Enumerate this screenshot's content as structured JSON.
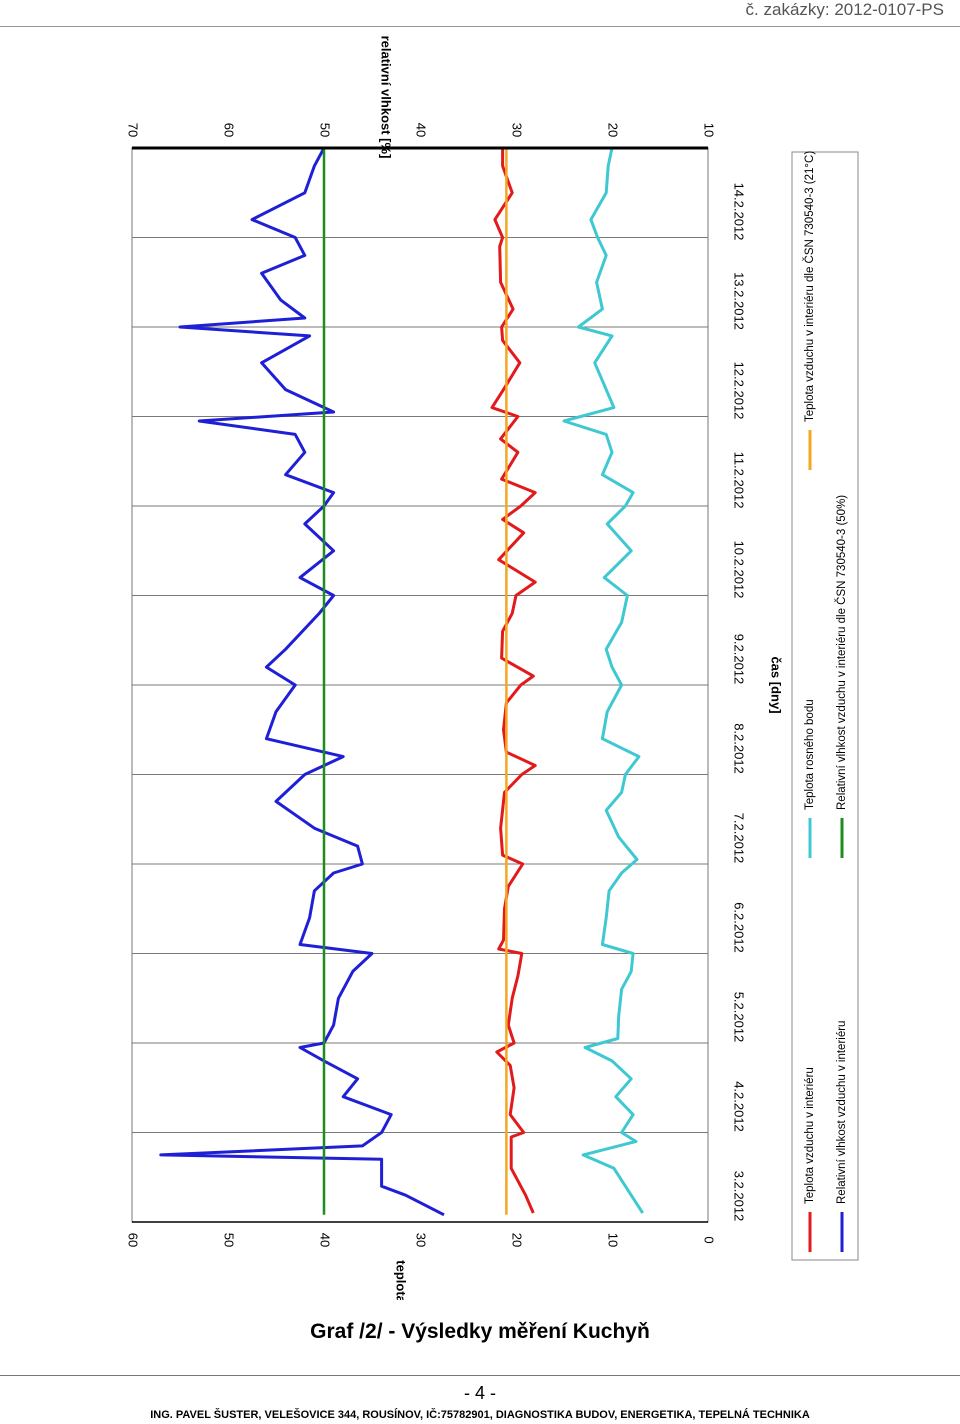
{
  "page": {
    "order_code": "č. zakázky: 2012-0107-PS",
    "caption": "Graf /2/ - Výsledky měření Kuchyň",
    "page_number": "- 4 -",
    "footer": "ING. PAVEL ŠUSTER, VELEŠOVICE 344, ROUSÍNOV, IČ:75782901, DIAGNOSTIKA BUDOV, ENERGETIKA, TEPELNÁ TECHNIKA"
  },
  "chart_data": {
    "type": "line",
    "orientation": "rotated-90-clockwise",
    "title": "",
    "xlabel": "čas [dny]",
    "ylabel_left": "teplota [°C]",
    "ylabel_right": "relativní vlhkost [%]",
    "xlim": [
      "3.2.2012",
      "15.2.2012"
    ],
    "xticks": [
      "3.2.2012",
      "4.2.2012",
      "5.2.2012",
      "6.2.2012",
      "7.2.2012",
      "8.2.2012",
      "9.2.2012",
      "10.2.2012",
      "11.2.2012",
      "12.2.2012",
      "13.2.2012",
      "14.2.2012"
    ],
    "ylim_left": [
      0,
      60
    ],
    "yticks_left": [
      "0",
      "10",
      "20",
      "30",
      "40",
      "50",
      "60"
    ],
    "ylim_right": [
      10,
      70
    ],
    "yticks_right": [
      "10",
      "20",
      "30",
      "40",
      "50",
      "60",
      "70"
    ],
    "grid": "vertical at each day",
    "legend_position": "right",
    "colors": {
      "teplota": "#e31a1c",
      "vlhkost": "#1f1fd6",
      "rosny_bod": "#3ec8d2",
      "norm_vlhkost": "#1e8c1e",
      "norm_teplota": "#f5a623"
    },
    "series": [
      {
        "name": "Teplota vzduchu v interiéru",
        "color_key": "teplota",
        "axis": "left",
        "points": [
          [
            0.1,
            18.2
          ],
          [
            0.3,
            19.0
          ],
          [
            0.6,
            20.5
          ],
          [
            0.95,
            20.5
          ],
          [
            1.0,
            19.2
          ],
          [
            1.2,
            20.6
          ],
          [
            1.5,
            20.2
          ],
          [
            1.75,
            20.6
          ],
          [
            1.9,
            22.0
          ],
          [
            2.0,
            20.2
          ],
          [
            2.2,
            20.8
          ],
          [
            2.5,
            20.4
          ],
          [
            2.75,
            19.8
          ],
          [
            3.0,
            19.4
          ],
          [
            3.05,
            21.8
          ],
          [
            3.15,
            21.3
          ],
          [
            3.5,
            21.2
          ],
          [
            3.75,
            20.8
          ],
          [
            4.0,
            19.3
          ],
          [
            4.1,
            21.4
          ],
          [
            4.4,
            21.6
          ],
          [
            4.8,
            21.2
          ],
          [
            5.0,
            19.4
          ],
          [
            5.1,
            18.0
          ],
          [
            5.25,
            21.0
          ],
          [
            5.5,
            21.3
          ],
          [
            5.8,
            21.0
          ],
          [
            6.0,
            19.5
          ],
          [
            6.1,
            18.2
          ],
          [
            6.3,
            21.5
          ],
          [
            6.6,
            21.4
          ],
          [
            6.8,
            20.4
          ],
          [
            7.0,
            20.0
          ],
          [
            7.15,
            18.0
          ],
          [
            7.4,
            21.8
          ],
          [
            7.7,
            19.2
          ],
          [
            7.85,
            21.4
          ],
          [
            8.0,
            19.5
          ],
          [
            8.15,
            18.0
          ],
          [
            8.3,
            21.5
          ],
          [
            8.6,
            19.8
          ],
          [
            8.75,
            21.6
          ],
          [
            9.0,
            19.8
          ],
          [
            9.1,
            22.5
          ],
          [
            9.3,
            21.3
          ],
          [
            9.6,
            19.6
          ],
          [
            9.85,
            21.4
          ],
          [
            10.0,
            21.5
          ],
          [
            10.2,
            20.3
          ],
          [
            10.5,
            21.6
          ],
          [
            10.9,
            21.7
          ],
          [
            11.0,
            21.4
          ],
          [
            11.2,
            22.2
          ],
          [
            11.5,
            20.4
          ],
          [
            11.8,
            21.4
          ],
          [
            12.0,
            21.4
          ]
        ]
      },
      {
        "name": "Relativní vlhkost vzduchu v interiéru",
        "color_key": "vlhkost",
        "axis": "right",
        "points": [
          [
            0.08,
            37.5
          ],
          [
            0.3,
            41.5
          ],
          [
            0.4,
            44.0
          ],
          [
            0.7,
            44.0
          ],
          [
            0.75,
            67.0
          ],
          [
            0.85,
            46.0
          ],
          [
            1.0,
            44.0
          ],
          [
            1.2,
            43.0
          ],
          [
            1.4,
            48.0
          ],
          [
            1.6,
            46.5
          ],
          [
            1.8,
            50.0
          ],
          [
            1.95,
            52.5
          ],
          [
            2.0,
            50.0
          ],
          [
            2.2,
            49.0
          ],
          [
            2.5,
            48.5
          ],
          [
            2.8,
            47.0
          ],
          [
            3.0,
            45.0
          ],
          [
            3.1,
            52.5
          ],
          [
            3.4,
            51.5
          ],
          [
            3.7,
            51.0
          ],
          [
            3.9,
            49.0
          ],
          [
            4.0,
            46.0
          ],
          [
            4.2,
            46.5
          ],
          [
            4.4,
            51.0
          ],
          [
            4.7,
            55.0
          ],
          [
            5.0,
            52.0
          ],
          [
            5.2,
            48.0
          ],
          [
            5.4,
            56.0
          ],
          [
            5.7,
            55.0
          ],
          [
            6.0,
            53.0
          ],
          [
            6.2,
            56.0
          ],
          [
            6.4,
            54.0
          ],
          [
            6.8,
            50.5
          ],
          [
            7.0,
            49.0
          ],
          [
            7.2,
            52.5
          ],
          [
            7.5,
            49.0
          ],
          [
            7.8,
            52.0
          ],
          [
            8.0,
            50.0
          ],
          [
            8.15,
            49.0
          ],
          [
            8.35,
            54.0
          ],
          [
            8.6,
            52.0
          ],
          [
            8.8,
            53.0
          ],
          [
            8.95,
            63.0
          ],
          [
            9.05,
            49.0
          ],
          [
            9.3,
            54.0
          ],
          [
            9.6,
            56.5
          ],
          [
            9.9,
            51.5
          ],
          [
            10.0,
            65.0
          ],
          [
            10.1,
            52.0
          ],
          [
            10.3,
            54.5
          ],
          [
            10.6,
            56.5
          ],
          [
            10.8,
            52.0
          ],
          [
            11.0,
            53.0
          ],
          [
            11.2,
            57.5
          ],
          [
            11.5,
            52.0
          ],
          [
            11.8,
            51.0
          ],
          [
            12.0,
            50.0
          ]
        ]
      },
      {
        "name": "Teplota rosného bodu",
        "color_key": "rosny_bod",
        "axis": "left",
        "points": [
          [
            0.1,
            6.8
          ],
          [
            0.3,
            8.0
          ],
          [
            0.6,
            9.8
          ],
          [
            0.75,
            13.0
          ],
          [
            0.9,
            7.5
          ],
          [
            1.0,
            9.0
          ],
          [
            1.2,
            7.8
          ],
          [
            1.4,
            9.6
          ],
          [
            1.6,
            8.0
          ],
          [
            1.8,
            10.0
          ],
          [
            1.95,
            12.8
          ],
          [
            2.05,
            9.4
          ],
          [
            2.3,
            9.3
          ],
          [
            2.6,
            9.0
          ],
          [
            2.8,
            8.0
          ],
          [
            3.0,
            7.8
          ],
          [
            3.1,
            11.0
          ],
          [
            3.4,
            10.6
          ],
          [
            3.7,
            10.3
          ],
          [
            3.9,
            9.0
          ],
          [
            4.05,
            7.4
          ],
          [
            4.3,
            9.3
          ],
          [
            4.6,
            10.6
          ],
          [
            4.8,
            9.0
          ],
          [
            5.0,
            8.6
          ],
          [
            5.2,
            7.2
          ],
          [
            5.4,
            11.0
          ],
          [
            5.7,
            10.5
          ],
          [
            6.0,
            9.0
          ],
          [
            6.2,
            10.0
          ],
          [
            6.4,
            10.6
          ],
          [
            6.7,
            9.0
          ],
          [
            7.0,
            8.4
          ],
          [
            7.2,
            10.8
          ],
          [
            7.5,
            8.0
          ],
          [
            7.8,
            10.5
          ],
          [
            8.0,
            8.6
          ],
          [
            8.15,
            7.8
          ],
          [
            8.35,
            11.0
          ],
          [
            8.6,
            10.0
          ],
          [
            8.8,
            10.6
          ],
          [
            8.95,
            15.0
          ],
          [
            9.1,
            9.8
          ],
          [
            9.4,
            11.0
          ],
          [
            9.6,
            11.8
          ],
          [
            9.9,
            10.0
          ],
          [
            10.0,
            13.5
          ],
          [
            10.2,
            11.0
          ],
          [
            10.5,
            11.6
          ],
          [
            10.8,
            10.6
          ],
          [
            11.0,
            11.5
          ],
          [
            11.2,
            12.2
          ],
          [
            11.5,
            10.6
          ],
          [
            11.8,
            10.4
          ],
          [
            12.0,
            10.0
          ]
        ]
      },
      {
        "name": "Relativní vlhkost vzduchu v interiéru dle ČSN 730540-3 (50%)",
        "color_key": "norm_vlhkost",
        "axis": "right",
        "points": [
          [
            0.08,
            50
          ],
          [
            12.0,
            50
          ]
        ]
      },
      {
        "name": "Teplota vzduchu v interiéru dle ČSN 730540-3 (21°C)",
        "color_key": "norm_teplota",
        "axis": "left",
        "points": [
          [
            0.08,
            21
          ],
          [
            12.0,
            21
          ]
        ]
      }
    ]
  }
}
